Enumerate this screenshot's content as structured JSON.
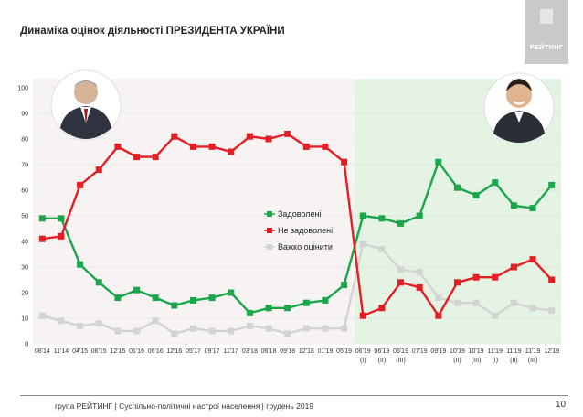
{
  "title": "Динаміка оцінок діяльності ПРЕЗИДЕНТА УКРАЇНИ",
  "logo_text": "РЕЙТИНГ",
  "footer": "група РЕЙТИНГ | Суспільно-політичні настрої населення | грудень 2019",
  "page_number": "10",
  "colors": {
    "series_green": "#1aa64a",
    "series_red": "#e31e24",
    "series_gray": "#d3d3d3",
    "left_background": "#f7f3f3",
    "right_background": "#e5f3e5"
  },
  "chart_data": {
    "type": "line",
    "title": "",
    "xlabel": "",
    "ylabel": "",
    "ylim": [
      0,
      100
    ],
    "yticks": [
      0,
      10,
      20,
      30,
      40,
      50,
      60,
      70,
      80,
      90,
      100
    ],
    "grid": true,
    "legend_position": "center",
    "categories": [
      "08'14",
      "11'14",
      "04'15",
      "06'15",
      "12'15",
      "01'16",
      "06'16",
      "12'16",
      "05'17",
      "09'17",
      "11'17",
      "03'18",
      "06'18",
      "09'18",
      "12'18",
      "01'19",
      "05'19",
      "06'19 (I)",
      "06'19 (II)",
      "06'19 (III)",
      "07'19",
      "09'19",
      "10'19 (II)",
      "10'19 (III)",
      "11'19 (I)",
      "11'19 (II)",
      "11'19 (III)",
      "12'19"
    ],
    "category_top_labels": [
      "08'14",
      "11'14",
      "04'15",
      "06'15",
      "12'15",
      "01'16",
      "06'16",
      "12'16",
      "05'17",
      "09'17",
      "11'17",
      "03'18",
      "06'18",
      "09'18",
      "12'18",
      "01'19",
      "05'19",
      "06'19",
      "06'19",
      "06'19",
      "07'19",
      "09'19",
      "10'19",
      "10'19",
      "11'19",
      "11'19",
      "11'19",
      "12'19"
    ],
    "category_sub_labels": [
      "",
      "",
      "",
      "",
      "",
      "",
      "",
      "",
      "",
      "",
      "",
      "",
      "",
      "",
      "",
      "",
      "",
      "(I)",
      "(II)",
      "(III)",
      "",
      "",
      "(II)",
      "(III)",
      "(I)",
      "(II)",
      "(III)",
      ""
    ],
    "series": [
      {
        "name": "Задоволені",
        "color": "#1aa64a",
        "values": [
          49,
          49,
          31,
          24,
          18,
          21,
          18,
          15,
          17,
          18,
          20,
          12,
          14,
          14,
          16,
          17,
          23,
          50,
          49,
          47,
          50,
          71,
          61,
          58,
          63,
          54,
          53,
          62
        ]
      },
      {
        "name": "Не задоволені",
        "color": "#e31e24",
        "values": [
          41,
          42,
          62,
          68,
          77,
          73,
          73,
          81,
          77,
          77,
          75,
          81,
          80,
          82,
          77,
          77,
          71,
          11,
          14,
          24,
          22,
          11,
          24,
          26,
          26,
          30,
          33,
          25
        ]
      },
      {
        "name": "Важко оцінити",
        "color": "#d3d3d3",
        "values": [
          11,
          9,
          7,
          8,
          5,
          5,
          9,
          4,
          6,
          5,
          5,
          7,
          6,
          4,
          6,
          6,
          6,
          39,
          37,
          29,
          28,
          18,
          16,
          16,
          11,
          16,
          14,
          13
        ]
      }
    ]
  }
}
